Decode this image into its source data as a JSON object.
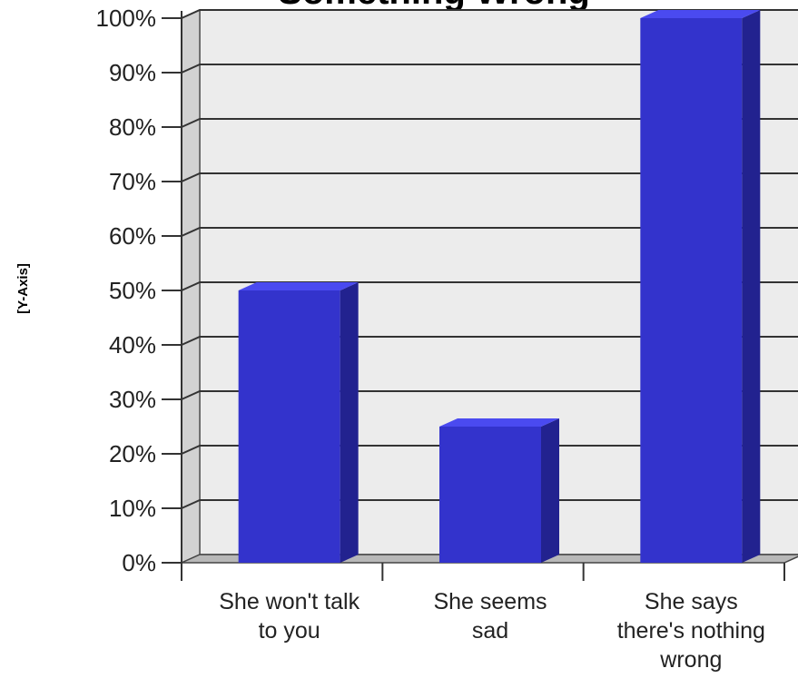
{
  "chart_data": {
    "type": "bar",
    "title": "Something Wrong",
    "ylabel": "[Y-Axis]",
    "xlabel": "",
    "categories": [
      [
        "She won't talk",
        "to you"
      ],
      [
        "She seems",
        "sad"
      ],
      [
        "She says",
        "there's nothing",
        "wrong"
      ]
    ],
    "values": [
      50,
      25,
      100
    ],
    "ylim": [
      0,
      100
    ],
    "yticks": [
      {
        "value": 0,
        "label": "0%"
      },
      {
        "value": 10,
        "label": "10%"
      },
      {
        "value": 20,
        "label": "20%"
      },
      {
        "value": 30,
        "label": "30%"
      },
      {
        "value": 40,
        "label": "40%"
      },
      {
        "value": 50,
        "label": "50%"
      },
      {
        "value": 60,
        "label": "60%"
      },
      {
        "value": 70,
        "label": "70%"
      },
      {
        "value": 80,
        "label": "80%"
      },
      {
        "value": 90,
        "label": "90%"
      },
      {
        "value": 100,
        "label": "100%"
      }
    ],
    "grid": true,
    "colors": {
      "bar_front": "#3333cc",
      "bar_side": "#22228f",
      "bar_top": "#4a4af0",
      "plot_back": "#ececec",
      "wall": "#d2d2d2",
      "floor": "#b8b8b8"
    }
  }
}
